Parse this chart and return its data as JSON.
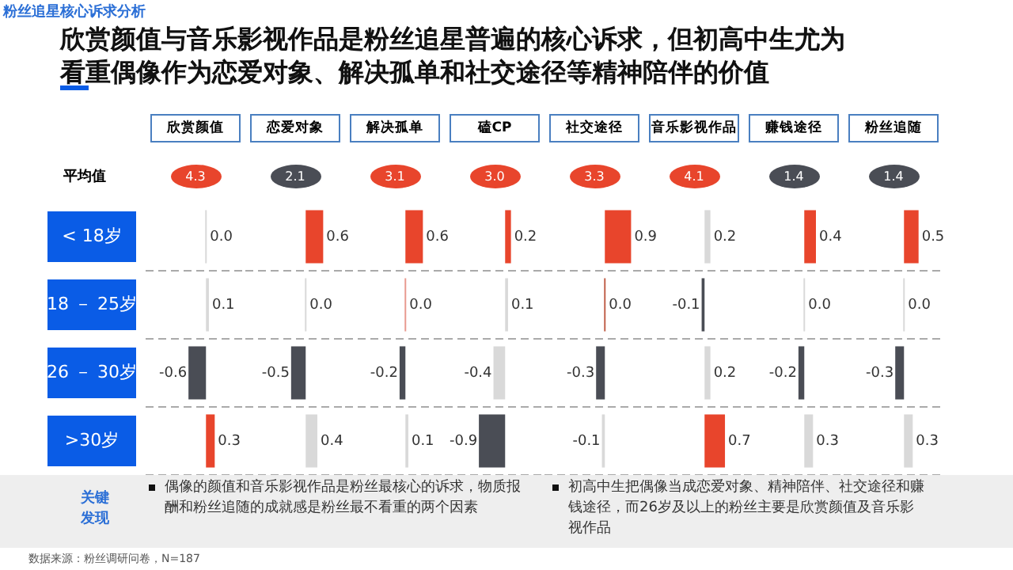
{
  "chart_data": [
    {
      "type": "other",
      "title": "欣赏颜值与音乐影视作品是粉丝追星普遍的核心诉求，但初高中生尤为看重偶像作为恋爱对象、解决孤单和社交途径等精神陪伴的价值",
      "subtitle": "粉丝追星核心诉求分析",
      "annotations": [
        "平均值",
        "关键发现",
        "偶像的颜值和音乐影视作品是粉丝最核心的诉求，物质报酬和粉丝追随的成就感是粉丝最不看重的两个因素",
        "初高中生把偶像当成恋爱对象、精神陪伴、社交途径和赚钱途径，而26岁及以上的粉丝主要是欣赏颜值及音乐影视作品",
        "数据来源：粉丝调研问卷，N=187"
      ]
    },
    {
      "type": "bar",
      "orientation": "horizontal",
      "title": "欣赏颜值",
      "subtitle": "4.3",
      "categories": [
        "< 18岁",
        "18 － 25岁",
        "26 － 30岁",
        ">30岁"
      ],
      "values": [
        0.0,
        0.1,
        -0.6,
        0.3
      ],
      "value_labels": [
        "0.0",
        "0.1",
        "-0.6",
        "0.3"
      ],
      "colors": [
        "#d9d9d9",
        "#d9d9d9",
        "#4a4d55",
        "#e8452c"
      ],
      "grid": "y",
      "tick_labels": "y"
    },
    {
      "type": "bar",
      "orientation": "horizontal",
      "title": "恋爱对象",
      "subtitle": "2.1",
      "categories": [
        null,
        null,
        null,
        null
      ],
      "values": [
        0.6,
        0.0,
        -0.5,
        0.4
      ],
      "value_labels": [
        "0.6",
        "0.0",
        "-0.5",
        "0.4"
      ],
      "colors": [
        "#e8452c",
        "#d9d9d9",
        "#4a4d55",
        "#d9d9d9"
      ],
      "grid": "y",
      "tick_labels": false
    },
    {
      "type": "bar",
      "orientation": "horizontal",
      "title": "解决孤单",
      "subtitle": "3.1",
      "categories": [
        null,
        null,
        null,
        null
      ],
      "values": [
        0.6,
        0.0,
        -0.2,
        0.1
      ],
      "value_labels": [
        "0.6",
        "0.0",
        "-0.2",
        "0.1"
      ],
      "colors": [
        "#e8452c",
        "#e89a90",
        "#4a4d55",
        "#d9d9d9"
      ],
      "grid": "y",
      "tick_labels": false
    },
    {
      "type": "bar",
      "orientation": "horizontal",
      "title": "磕CP",
      "subtitle": "3.0",
      "categories": [
        null,
        null,
        null,
        null
      ],
      "values": [
        0.2,
        0.1,
        -0.4,
        -0.9
      ],
      "value_labels": [
        "0.2",
        "0.1",
        "-0.4",
        "-0.9"
      ],
      "colors": [
        "#e8452c",
        "#d9d9d9",
        "#d9d9d9",
        "#4a4d55"
      ],
      "grid": "y",
      "tick_labels": false
    },
    {
      "type": "bar",
      "orientation": "horizontal",
      "title": "社交途径",
      "subtitle": "3.3",
      "categories": [
        null,
        null,
        null,
        null
      ],
      "values": [
        0.9,
        0.0,
        -0.3,
        -0.1
      ],
      "value_labels": [
        "0.9",
        "0.0",
        "-0.3",
        "-0.1"
      ],
      "colors": [
        "#e8452c",
        "#c0604a",
        "#4a4d55",
        "#d9d9d9"
      ],
      "grid": "y",
      "tick_labels": false
    },
    {
      "type": "bar",
      "orientation": "horizontal",
      "title": "音乐影视作品",
      "subtitle": "4.1",
      "categories": [
        null,
        null,
        null,
        null
      ],
      "values": [
        0.2,
        -0.1,
        0.2,
        0.7
      ],
      "value_labels": [
        "0.2",
        "-0.1",
        "0.2",
        "0.7"
      ],
      "colors": [
        "#d9d9d9",
        "#4a4d55",
        "#d9d9d9",
        "#e8452c"
      ],
      "grid": "y",
      "tick_labels": false
    },
    {
      "type": "bar",
      "orientation": "horizontal",
      "title": "赚钱途径",
      "subtitle": "1.4",
      "categories": [
        null,
        null,
        null,
        null
      ],
      "values": [
        0.4,
        0.0,
        -0.2,
        0.3
      ],
      "value_labels": [
        "0.4",
        "0.0",
        "-0.2",
        "0.3"
      ],
      "colors": [
        "#e8452c",
        "#d9d9d9",
        "#4a4d55",
        "#d9d9d9"
      ],
      "grid": "y",
      "tick_labels": false
    },
    {
      "type": "bar",
      "orientation": "horizontal",
      "title": "粉丝追随",
      "subtitle": "1.4",
      "categories": [
        null,
        null,
        null,
        null
      ],
      "values": [
        0.5,
        0.0,
        -0.3,
        0.3
      ],
      "value_labels": [
        "0.5",
        "0.0",
        "-0.3",
        "0.3"
      ],
      "colors": [
        "#e8452c",
        "#d9d9d9",
        "#4a4d55",
        "#d9d9d9"
      ],
      "grid": "y",
      "tick_labels": false
    }
  ]
}
